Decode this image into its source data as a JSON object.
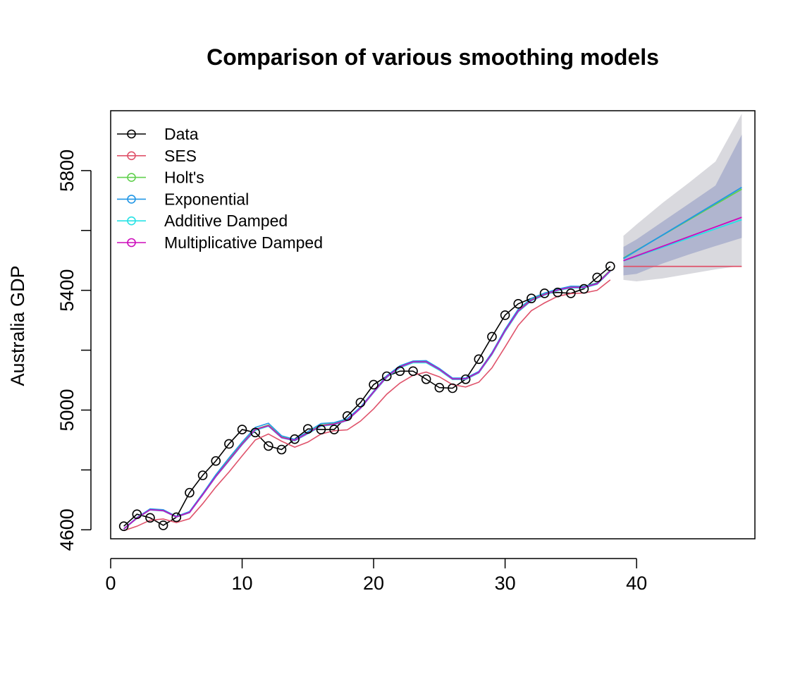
{
  "chart_data": {
    "type": "line",
    "title": "Comparison of various smoothing models",
    "xlabel": "",
    "ylabel": "Australia GDP",
    "xlim": [
      0,
      49
    ],
    "ylim": [
      4570,
      6000
    ],
    "x_ticks": [
      0,
      10,
      20,
      30,
      40
    ],
    "y_ticks": [
      4600,
      5000,
      5400,
      5800
    ],
    "y_tick_labels": [
      "4600",
      "5000",
      "5400",
      "5800"
    ],
    "grid": false,
    "legend_position": "top-left",
    "x": [
      1,
      2,
      3,
      4,
      5,
      6,
      7,
      8,
      9,
      10,
      11,
      12,
      13,
      14,
      15,
      16,
      17,
      18,
      19,
      20,
      21,
      22,
      23,
      24,
      25,
      26,
      27,
      28,
      29,
      30,
      31,
      32,
      33,
      34,
      35,
      36,
      37,
      38
    ],
    "series": [
      {
        "name": "Data",
        "color": "#000000",
        "markers": true,
        "values": [
          4612,
          4652,
          4640,
          4615,
          4642,
          4724,
          4782,
          4830,
          4887,
          4935,
          4925,
          4880,
          4868,
          4903,
          4937,
          4935,
          4935,
          4980,
          5025,
          5085,
          5113,
          5130,
          5130,
          5103,
          5075,
          5073,
          5103,
          5170,
          5245,
          5317,
          5355,
          5373,
          5390,
          5393,
          5390,
          5405,
          5443,
          5480
        ]
      },
      {
        "name": "SES",
        "color": "#DF536B",
        "markers": false,
        "values": [
          4597,
          4612,
          4632,
          4636,
          4624,
          4637,
          4687,
          4743,
          4793,
          4847,
          4900,
          4920,
          4896,
          4876,
          4893,
          4920,
          4931,
          4934,
          4963,
          5004,
          5053,
          5090,
          5116,
          5127,
          5111,
          5085,
          5077,
          5093,
          5141,
          5211,
          5283,
          5332,
          5358,
          5380,
          5389,
          5391,
          5400,
          5435
        ]
      },
      {
        "name": "Holt's",
        "color": "#61D04F",
        "markers": false,
        "values": [
          4603,
          4640,
          4668,
          4664,
          4643,
          4658,
          4718,
          4780,
          4834,
          4888,
          4936,
          4950,
          4910,
          4900,
          4924,
          4950,
          4955,
          4968,
          5008,
          5061,
          5112,
          5145,
          5162,
          5162,
          5137,
          5105,
          5105,
          5127,
          5189,
          5266,
          5332,
          5369,
          5388,
          5403,
          5413,
          5413,
          5425,
          5468
        ]
      },
      {
        "name": "Exponential",
        "color": "#2297E6",
        "markers": false,
        "values": [
          4604,
          4641,
          4670,
          4667,
          4645,
          4661,
          4721,
          4784,
          4840,
          4893,
          4942,
          4956,
          4914,
          4902,
          4928,
          4955,
          4958,
          4971,
          5010,
          5063,
          5115,
          5148,
          5164,
          5165,
          5139,
          5107,
          5107,
          5129,
          5192,
          5270,
          5337,
          5373,
          5391,
          5404,
          5414,
          5413,
          5424,
          5466
        ]
      },
      {
        "name": "Additive Damped",
        "color": "#28E2E5",
        "markers": false,
        "values": [
          4602,
          4638,
          4666,
          4663,
          4642,
          4657,
          4716,
          4777,
          4830,
          4884,
          4932,
          4946,
          4907,
          4897,
          4921,
          4946,
          4951,
          4965,
          5005,
          5058,
          5109,
          5141,
          5158,
          5158,
          5133,
          5102,
          5102,
          5124,
          5185,
          5262,
          5328,
          5365,
          5384,
          5399,
          5408,
          5408,
          5420,
          5463
        ]
      },
      {
        "name": "Multiplicative Damped",
        "color": "#CD0BBC",
        "markers": false,
        "values": [
          4603,
          4639,
          4667,
          4664,
          4643,
          4658,
          4717,
          4778,
          4832,
          4886,
          4935,
          4948,
          4908,
          4899,
          4923,
          4948,
          4953,
          4966,
          5006,
          5060,
          5111,
          5144,
          5161,
          5161,
          5136,
          5104,
          5104,
          5126,
          5188,
          5265,
          5331,
          5367,
          5386,
          5401,
          5410,
          5410,
          5422,
          5465
        ]
      }
    ],
    "forecast": {
      "x": [
        39,
        48
      ],
      "lines": [
        {
          "name": "SES",
          "color": "#DF536B",
          "values": [
            5480,
            5480
          ]
        },
        {
          "name": "Holt's",
          "color": "#61D04F",
          "values": [
            5508,
            5738
          ]
        },
        {
          "name": "Exponential",
          "color": "#2297E6",
          "values": [
            5506,
            5744
          ]
        },
        {
          "name": "Additive Damped",
          "color": "#28E2E5",
          "values": [
            5498,
            5636
          ]
        },
        {
          "name": "Multiplicative Damped",
          "color": "#CD0BBC",
          "values": [
            5499,
            5644
          ]
        }
      ],
      "intervals": [
        {
          "level": "outer",
          "color": "#D9D9DE",
          "upper": [
            [
              39,
              5582
            ],
            [
              40,
              5620
            ],
            [
              42,
              5693
            ],
            [
              44,
              5760
            ],
            [
              46,
              5830
            ],
            [
              48,
              5990
            ]
          ],
          "lower": [
            [
              39,
              5435
            ],
            [
              40,
              5430
            ],
            [
              42,
              5440
            ],
            [
              44,
              5455
            ],
            [
              46,
              5470
            ],
            [
              48,
              5482
            ]
          ]
        },
        {
          "level": "inner",
          "color": "#B0B5CF",
          "upper": [
            [
              39,
              5545
            ],
            [
              40,
              5570
            ],
            [
              42,
              5630
            ],
            [
              44,
              5690
            ],
            [
              46,
              5750
            ],
            [
              48,
              5920
            ]
          ],
          "lower": [
            [
              39,
              5450
            ],
            [
              40,
              5455
            ],
            [
              42,
              5490
            ],
            [
              44,
              5520
            ],
            [
              46,
              5548
            ],
            [
              48,
              5575
            ]
          ]
        }
      ]
    }
  }
}
